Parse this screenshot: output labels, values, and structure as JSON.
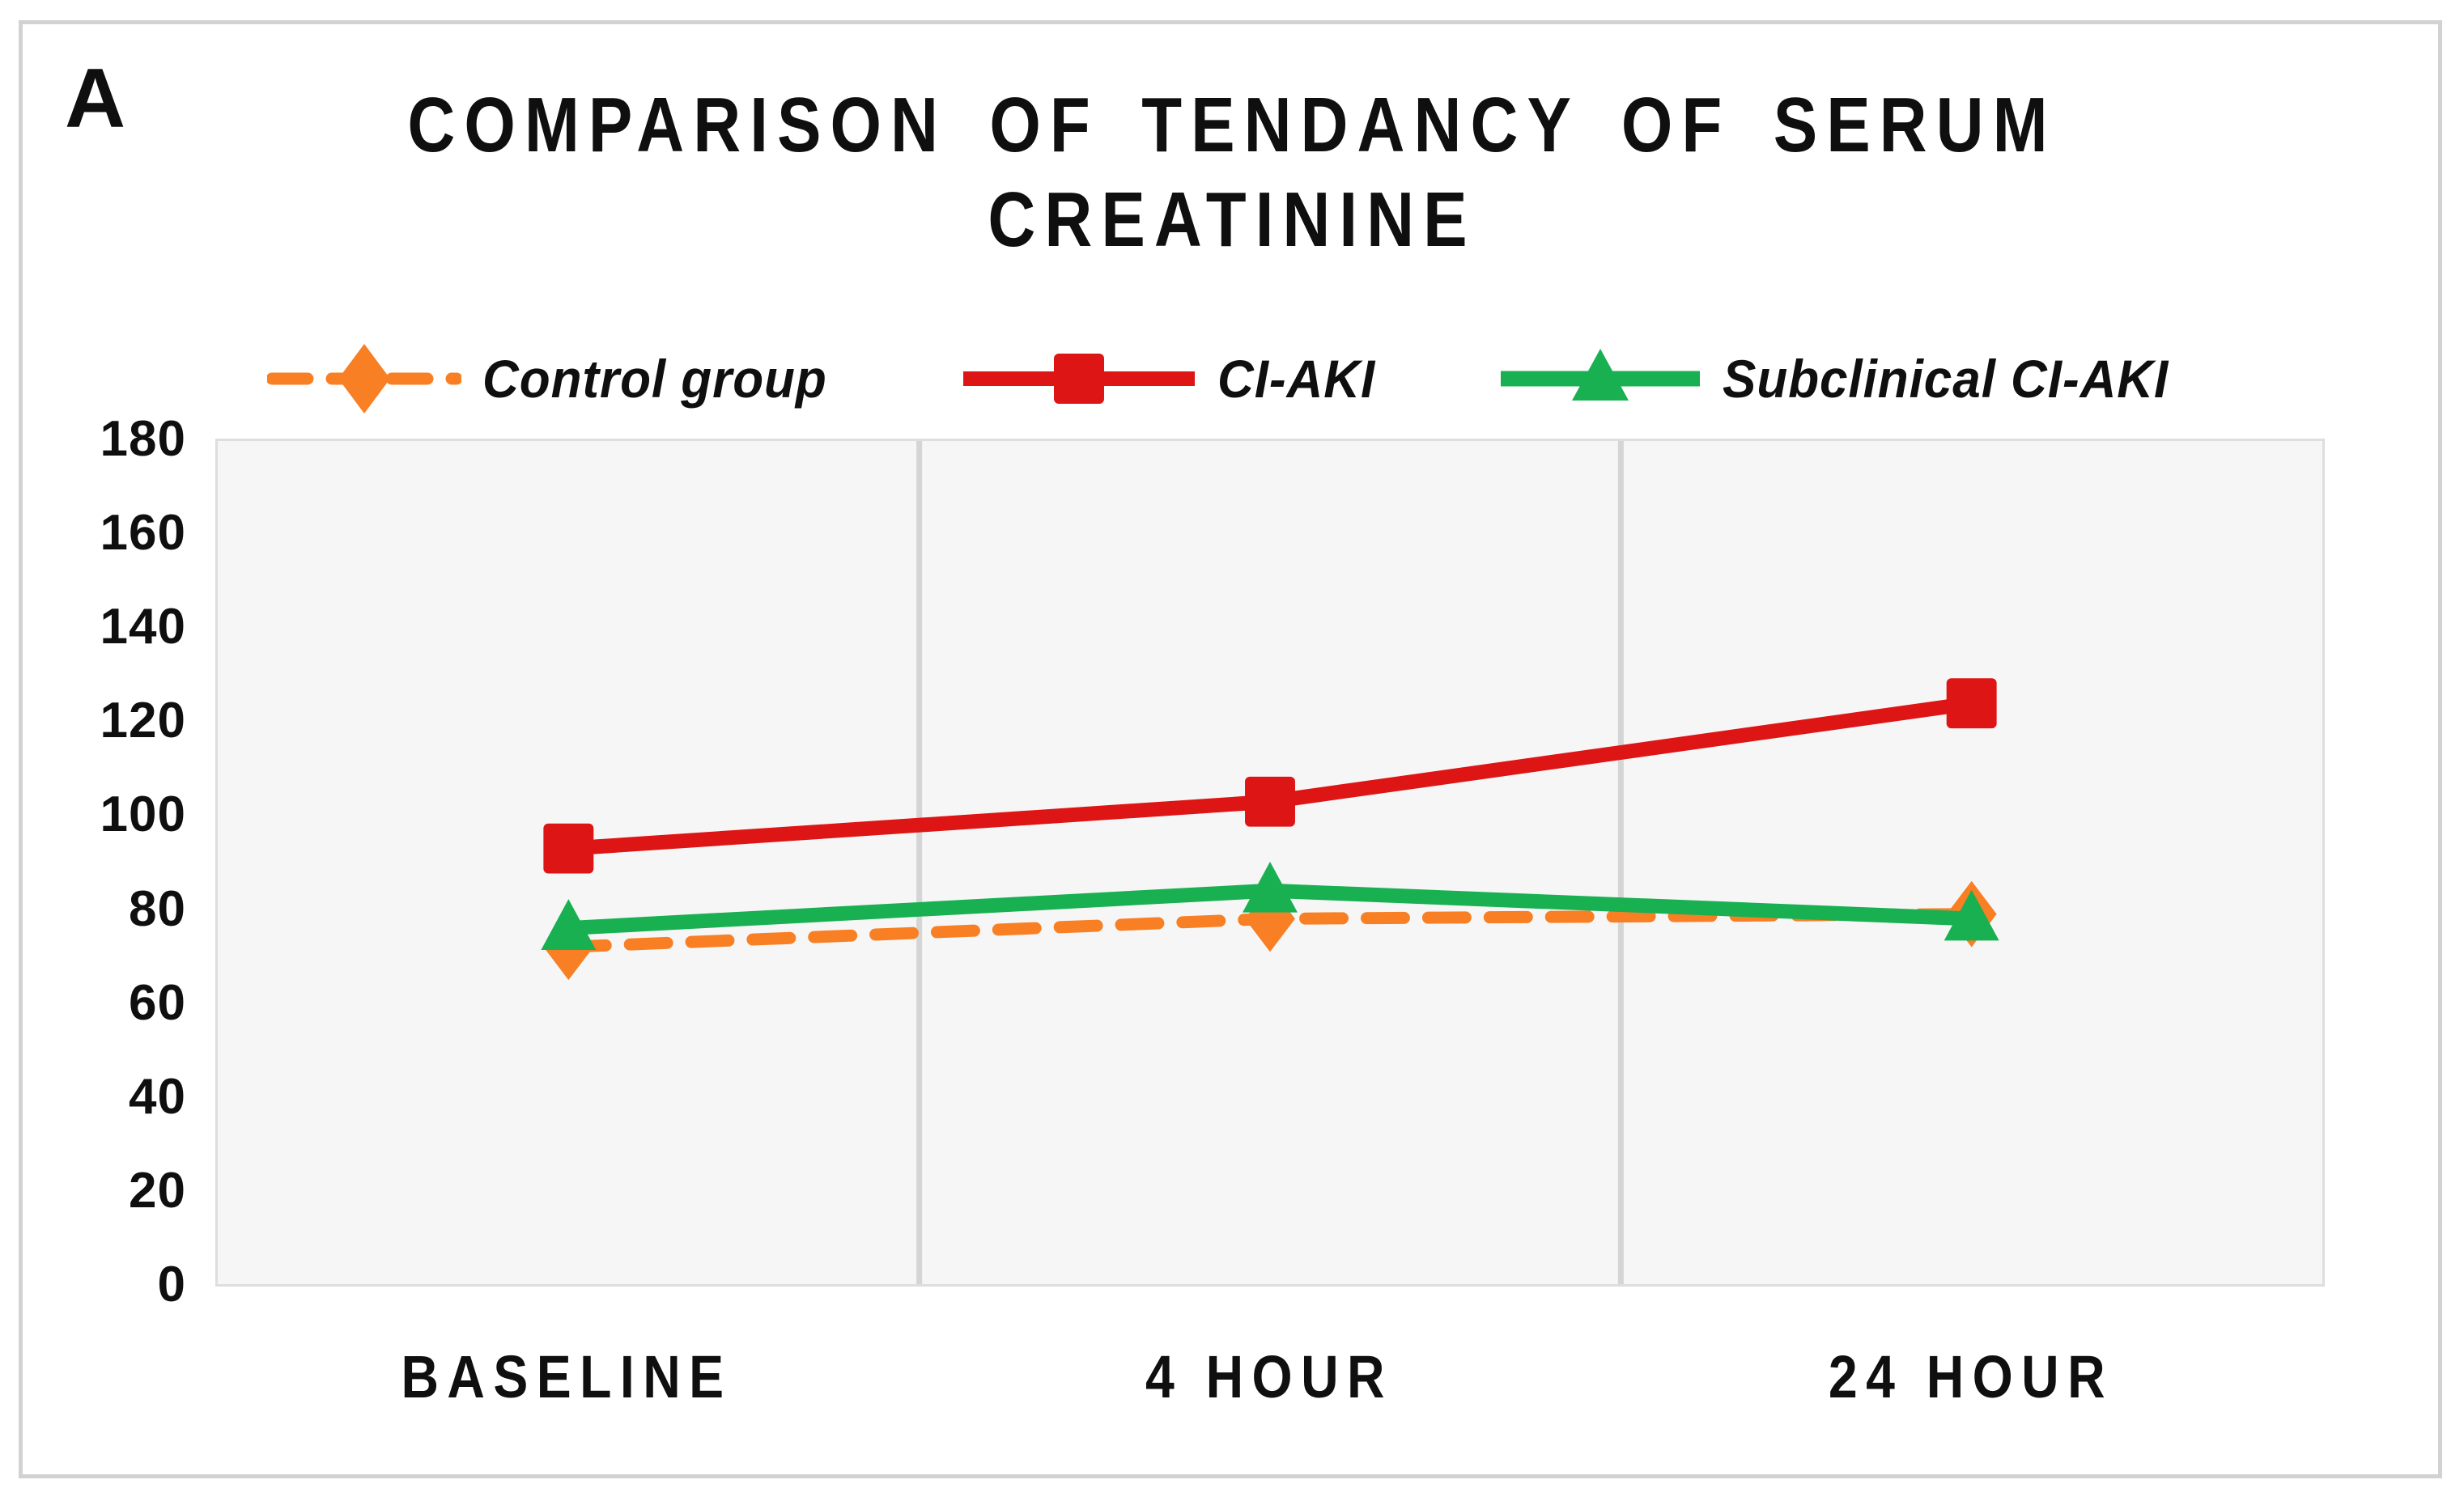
{
  "panel_label": "A",
  "title": {
    "line1": "COMPARISON OF TENDANCY OF SERUM",
    "line2": "CREATININE"
  },
  "chart_data": {
    "type": "line",
    "title": "COMPARISON OF TENDANCY OF SERUM CREATININE",
    "categories": [
      "BASELINE",
      "4 HOUR",
      "24 HOUR"
    ],
    "series": [
      {
        "name": "Control group",
        "values": [
          72,
          78,
          79
        ],
        "color": "#F87F23",
        "line_style": "dashed",
        "marker": "diamond"
      },
      {
        "name": "CI-AKI",
        "values": [
          93,
          103,
          124
        ],
        "color": "#DE1515",
        "line_style": "solid",
        "marker": "square"
      },
      {
        "name": "Subclinical CI-AKI",
        "values": [
          76,
          84,
          78
        ],
        "color": "#19B052",
        "line_style": "solid",
        "marker": "triangle"
      }
    ],
    "ylim": [
      0,
      180
    ],
    "yticks": [
      0,
      20,
      40,
      60,
      80,
      100,
      120,
      140,
      160,
      180
    ],
    "xlabel": "",
    "ylabel": "",
    "grid": "vertical-category-dividers",
    "gridline_color": "#D5D5D5",
    "plot_bg": "#F6F6F6",
    "legend_position": "top"
  }
}
